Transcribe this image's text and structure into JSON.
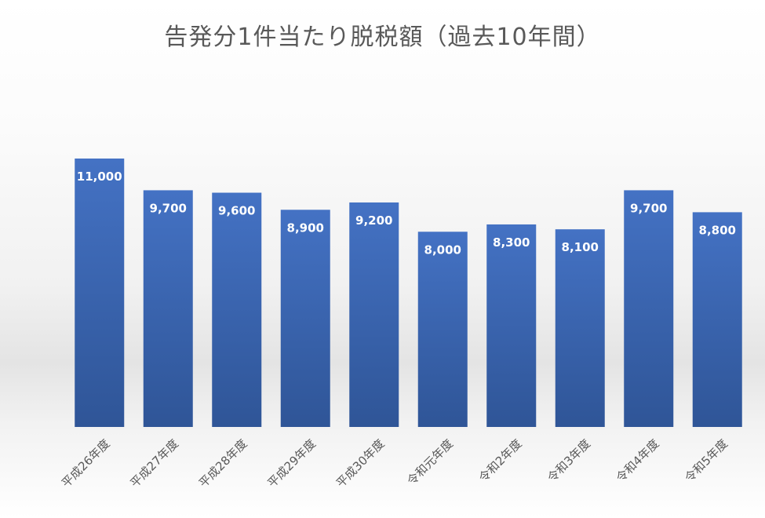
{
  "chart_data": {
    "type": "bar",
    "title": "告発分1件当たり脱税額（過去10年間）",
    "categories": [
      "平成26年度",
      "平成27年度",
      "平成28年度",
      "平成29年度",
      "平成30年度",
      "令和元年度",
      "令和2年度",
      "令和3年度",
      "令和4年度",
      "令和5年度"
    ],
    "values": [
      11000,
      9700,
      9600,
      8900,
      9200,
      8000,
      8300,
      8100,
      9700,
      8800
    ],
    "data_labels": [
      "11,000",
      "9,700",
      "9,600",
      "8,900",
      "9,200",
      "8,000",
      "8,300",
      "8,100",
      "9,700",
      "8,800"
    ],
    "ylim": [
      0,
      11000
    ],
    "grid": false,
    "bar_color_top": "#4472c4",
    "bar_color_bottom": "#2f5597",
    "label_color": "#ffffff",
    "title_color": "#595959"
  }
}
